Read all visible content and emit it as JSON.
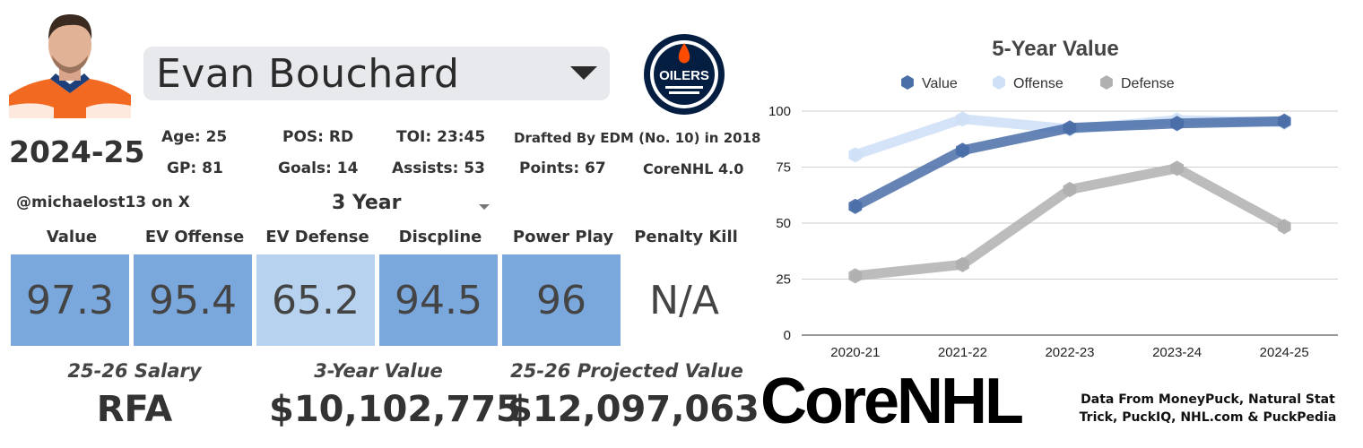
{
  "player": {
    "name": "Evan Bouchard",
    "season": "2024-25",
    "age": "Age: 25",
    "pos": "POS: RD",
    "toi": "TOI: 23:45",
    "drafted": "Drafted By EDM (No. 10) in 2018",
    "gp": "GP: 81",
    "goals": "Goals: 14",
    "assists": "Assists: 53",
    "points": "Points: 67",
    "core": "CoreNHL 4.0",
    "team_logo_text": "OILERS"
  },
  "controls": {
    "handle": "@michaelost13 on X",
    "period": "3 Year"
  },
  "metrics": [
    {
      "label": "Value",
      "value": "97.3",
      "color": "#7aa8dc"
    },
    {
      "label": "EV Offense",
      "value": "95.4",
      "color": "#7aa8dc"
    },
    {
      "label": "EV Defense",
      "value": "65.2",
      "color": "#b7d2ee"
    },
    {
      "label": "Discpline",
      "value": "94.5",
      "color": "#7aa8dc"
    },
    {
      "label": "Power Play",
      "value": "96",
      "color": "#7aa8dc"
    },
    {
      "label": "Penalty Kill",
      "value": "N/A",
      "color": "#ffffff"
    }
  ],
  "money": {
    "salary_label": "25-26 Salary",
    "salary_value": "RFA",
    "three_year_label": "3-Year Value",
    "three_year_value": "$10,102,775",
    "projected_label": "25-26 Projected Value",
    "projected_value": "$12,097,063"
  },
  "branding": {
    "logo_text": "CoreNHL",
    "source_line1": "Data From MoneyPuck, Natural Stat",
    "source_line2": "Trick, PuckIQ, NHL.com & PuckPedia"
  },
  "chart_data": {
    "type": "line",
    "title": "5-Year Value",
    "categories": [
      "2020-21",
      "2021-22",
      "2022-23",
      "2023-24",
      "2024-25"
    ],
    "series": [
      {
        "name": "Value",
        "values": [
          57.5,
          82.5,
          92.5,
          94.5,
          95.5
        ],
        "color": "#4a6ea8"
      },
      {
        "name": "Offense",
        "values": [
          80.5,
          96.5,
          92,
          96,
          95
        ],
        "color": "#cfe0f7"
      },
      {
        "name": "Defense",
        "values": [
          26.5,
          31.5,
          65,
          74.5,
          48.5
        ],
        "color": "#b0b0b0"
      }
    ],
    "yticks": [
      "0",
      "25",
      "50",
      "75",
      "100"
    ],
    "ylim": [
      0,
      100
    ],
    "grid": true,
    "legend": "top"
  }
}
